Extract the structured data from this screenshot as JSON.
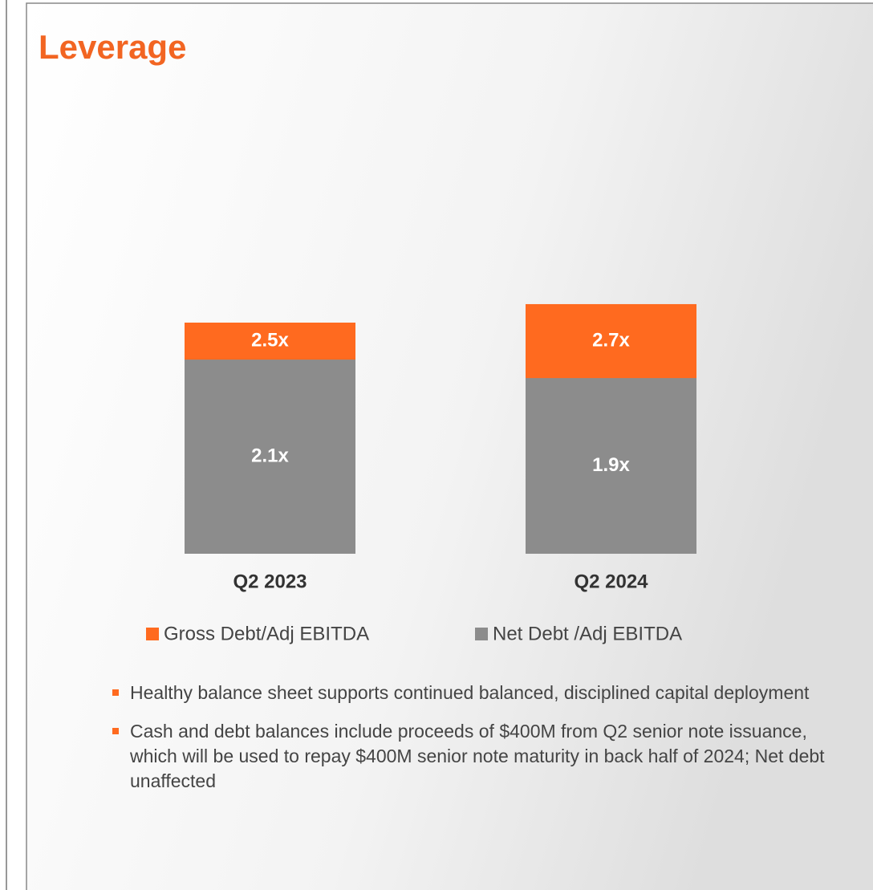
{
  "header": {
    "title": "Leverage"
  },
  "chart_data": {
    "type": "bar",
    "categories": [
      "Q2 2023",
      "Q2 2024"
    ],
    "series": [
      {
        "name": "Gross Debt/Adj EBITDA",
        "color": "#ff6a1f",
        "values": [
          2.5,
          2.7
        ],
        "value_labels": [
          "2.5x",
          "2.7x"
        ]
      },
      {
        "name": "Net Debt /Adj EBITDA",
        "color": "#8c8c8c",
        "values": [
          2.1,
          1.9
        ],
        "value_labels": [
          "2.1x",
          "1.9x"
        ]
      }
    ]
  },
  "bullets": [
    "Healthy balance sheet supports continued balanced, disciplined capital deployment",
    "Cash and debt balances include proceeds of $400M from Q2 senior note issuance, which will be used to repay $400M senior note maturity in back half of 2024; Net debt unaffected"
  ]
}
